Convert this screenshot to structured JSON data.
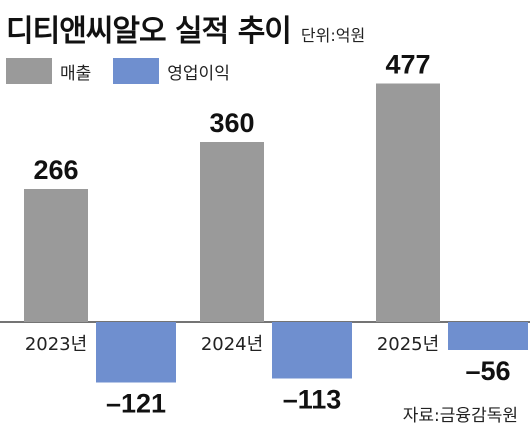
{
  "header": {
    "title": "디티앤씨알오 실적 추이",
    "unit": "단위:억원"
  },
  "source": "자료:금융감독원",
  "colors": {
    "revenue": "#9a9a9a",
    "op_income": "#6f8fcf"
  },
  "chart_data": {
    "type": "bar",
    "categories": [
      "2023년",
      "2024년",
      "2025년"
    ],
    "series": [
      {
        "name": "매출",
        "values": [
          266,
          360,
          477
        ],
        "labels": [
          "266",
          "360",
          "477"
        ]
      },
      {
        "name": "영업이익",
        "values": [
          -121,
          -113,
          -56
        ],
        "labels": [
          "–121",
          "–113",
          "–56"
        ]
      }
    ],
    "title": "디티앤씨알오 실적 추이",
    "unit": "단위:억원",
    "legend": "top-left",
    "grid": false
  }
}
